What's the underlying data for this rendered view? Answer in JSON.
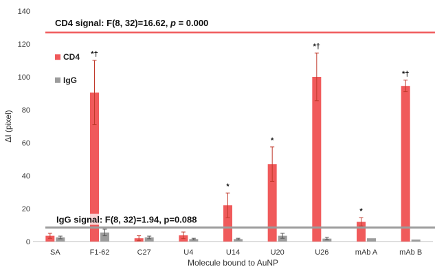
{
  "chart_data": {
    "type": "bar",
    "title": "",
    "xlabel": "Molecule bound to AuNP",
    "ylabel": "ΔI (pixel)",
    "ylim": [
      0,
      140
    ],
    "yticks": [
      0,
      20,
      40,
      60,
      80,
      100,
      120,
      140
    ],
    "grid": false,
    "legend_position": "left",
    "categories": [
      "SA",
      "F1-62",
      "C27",
      "U4",
      "U14",
      "U20",
      "U26",
      "mAb A",
      "mAb B"
    ],
    "series": [
      {
        "name": "CD4",
        "color": "#f05a5b",
        "values": [
          3.5,
          90.5,
          2.0,
          3.8,
          22.0,
          47.0,
          100.0,
          12.0,
          94.5
        ],
        "errors": [
          1.5,
          19.5,
          1.5,
          2.0,
          7.5,
          10.5,
          14.5,
          2.5,
          3.5
        ],
        "marks": [
          "",
          "*†",
          "",
          "",
          "*",
          "*",
          "*†",
          "*",
          "*†"
        ]
      },
      {
        "name": "IgG",
        "color": "#9c9c9c",
        "values": [
          2.5,
          5.5,
          2.5,
          1.5,
          1.5,
          3.5,
          1.8,
          2.0,
          1.2
        ],
        "errors": [
          0.8,
          2.0,
          0.8,
          0.5,
          0.5,
          1.5,
          0.8,
          0.0,
          0.0
        ]
      }
    ],
    "reference_lines": [
      {
        "name": "CD4 signal",
        "y": 127,
        "color": "#f05a5b",
        "label_prefix": "CD4 signal: F(8, 32)=16.62, ",
        "label_p": "p",
        "label_suffix": " = 0.000"
      },
      {
        "name": "IgG signal",
        "y": 8.5,
        "color": "#9c9c9c",
        "label": "IgG signal: F(8, 32)=1.94, p=0.088"
      }
    ]
  }
}
